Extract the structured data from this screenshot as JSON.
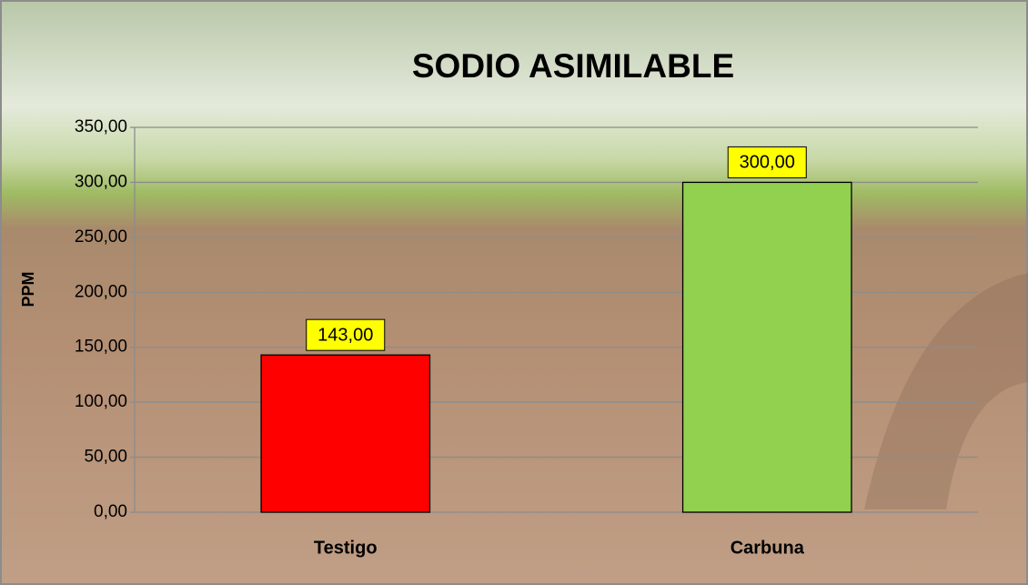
{
  "chart_data": {
    "type": "bar",
    "title": "SODIO ASIMILABLE",
    "y_label": "PPM",
    "categories": [
      "Testigo",
      "Carbuna"
    ],
    "values": [
      143,
      300
    ],
    "value_labels": [
      "143,00",
      "300,00"
    ],
    "colors": [
      "#ff0000",
      "#92d050"
    ],
    "ylim": [
      0,
      350
    ],
    "yticks": [
      {
        "value": 0,
        "label": "0,00"
      },
      {
        "value": 50,
        "label": "50,00"
      },
      {
        "value": 100,
        "label": "100,00"
      },
      {
        "value": 150,
        "label": "150,00"
      },
      {
        "value": 200,
        "label": "200,00"
      },
      {
        "value": 250,
        "label": "250,00"
      },
      {
        "value": 300,
        "label": "300,00"
      },
      {
        "value": 350,
        "label": "350,00"
      }
    ],
    "grid": true
  }
}
